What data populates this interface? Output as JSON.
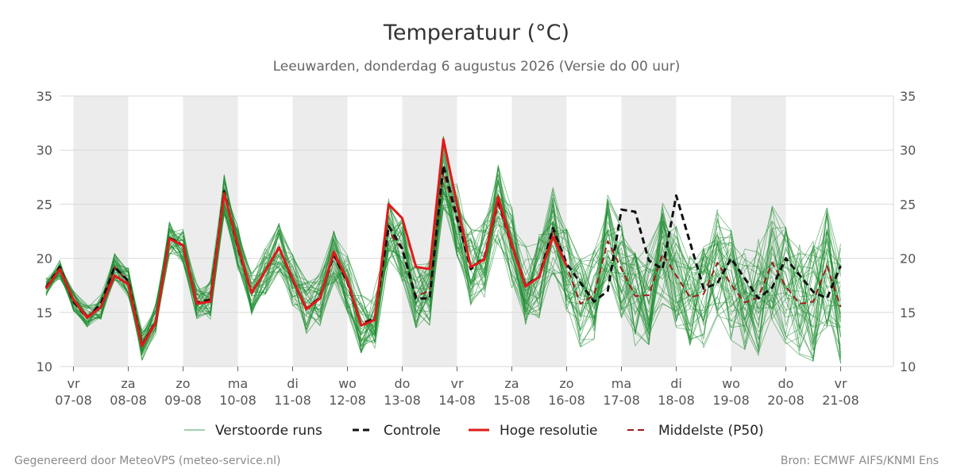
{
  "chart_data": {
    "type": "line",
    "title": "Temperatuur (°C)",
    "subtitle": "Leeuwarden, donderdag  6 augustus 2026 (Versie do 00 uur)",
    "ylim": [
      10,
      35
    ],
    "yticks": [
      10,
      15,
      20,
      25,
      30,
      35
    ],
    "xlim": [
      0,
      15
    ],
    "grid": true,
    "legend_placement": "bottom",
    "weekend_shading": [
      [
        1,
        2
      ],
      [
        3,
        4
      ],
      [
        5,
        6
      ],
      [
        7,
        8
      ],
      [
        9,
        10
      ],
      [
        11,
        12
      ],
      [
        13,
        14
      ]
    ],
    "x_ticks": [
      {
        "x": 1,
        "day": "vr",
        "date": "07-08"
      },
      {
        "x": 2,
        "day": "za",
        "date": "08-08"
      },
      {
        "x": 3,
        "day": "zo",
        "date": "09-08"
      },
      {
        "x": 4,
        "day": "ma",
        "date": "10-08"
      },
      {
        "x": 5,
        "day": "di",
        "date": "11-08"
      },
      {
        "x": 6,
        "day": "wo",
        "date": "12-08"
      },
      {
        "x": 7,
        "day": "do",
        "date": "13-08"
      },
      {
        "x": 8,
        "day": "vr",
        "date": "14-08"
      },
      {
        "x": 9,
        "day": "za",
        "date": "15-08"
      },
      {
        "x": 10,
        "day": "zo",
        "date": "16-08"
      },
      {
        "x": 11,
        "day": "ma",
        "date": "17-08"
      },
      {
        "x": 12,
        "day": "di",
        "date": "18-08"
      },
      {
        "x": 13,
        "day": "wo",
        "date": "19-08"
      },
      {
        "x": 14,
        "day": "do",
        "date": "20-08"
      },
      {
        "x": 15,
        "day": "vr",
        "date": "21-08"
      }
    ],
    "series": [
      {
        "name": "Controle",
        "color": "#111111",
        "style": "dashed",
        "width": 3,
        "x": [
          0.5,
          0.75,
          1,
          1.25,
          1.5,
          1.75,
          2,
          2.25,
          2.5,
          2.75,
          3,
          3.25,
          3.5,
          3.75,
          4,
          4.25,
          4.5,
          4.75,
          5,
          5.25,
          5.5,
          5.75,
          6,
          6.25,
          6.5,
          6.75,
          7,
          7.25,
          7.5,
          7.75,
          8,
          8.25,
          8.5,
          8.75,
          9,
          9.25,
          9.5,
          9.75,
          10,
          10.5,
          10.75,
          11,
          11.25,
          11.5,
          11.75,
          12,
          12.5,
          12.75,
          13,
          13.5,
          13.75,
          14,
          14.5,
          14.75,
          15
        ],
        "y": [
          17.3,
          19.2,
          16.0,
          14.5,
          15.8,
          19.2,
          17.9,
          12.0,
          14.0,
          21.9,
          21.2,
          15.8,
          16.2,
          26.2,
          21.0,
          16.8,
          18.8,
          21.0,
          18.0,
          15.3,
          16.4,
          20.3,
          17.8,
          13.8,
          14.5,
          23.0,
          20.9,
          16.3,
          16.3,
          28.6,
          23.8,
          19.0,
          20.1,
          25.5,
          21.3,
          17.5,
          18.3,
          22.8,
          19.5,
          16.0,
          17.0,
          24.5,
          24.3,
          19.8,
          19.0,
          25.8,
          17.2,
          17.7,
          20.0,
          16.3,
          17.3,
          20.0,
          16.9,
          16.3,
          19.3
        ]
      },
      {
        "name": "Hoge resolutie",
        "color": "#e11a1a",
        "style": "solid",
        "width": 3,
        "x": [
          0.5,
          0.75,
          1,
          1.25,
          1.5,
          1.75,
          2,
          2.25,
          2.5,
          2.75,
          3,
          3.25,
          3.5,
          3.75,
          4,
          4.25,
          4.5,
          4.75,
          5,
          5.25,
          5.5,
          5.75,
          6,
          6.25,
          6.5,
          6.75,
          7,
          7.25,
          7.5,
          7.75,
          8,
          8.25,
          8.5,
          8.75,
          9,
          9.25,
          9.5,
          9.75,
          10
        ],
        "y": [
          17.2,
          19.0,
          16.2,
          14.5,
          15.5,
          18.4,
          17.6,
          11.9,
          14.0,
          21.8,
          21.2,
          15.8,
          16.0,
          26.0,
          21.2,
          16.8,
          18.8,
          21.0,
          18.1,
          15.3,
          16.3,
          20.6,
          18.0,
          13.8,
          14.3,
          25.0,
          23.7,
          19.2,
          19.0,
          31.0,
          25.0,
          19.2,
          19.9,
          25.7,
          21.3,
          17.4,
          18.3,
          22.0,
          19.3
        ]
      },
      {
        "name": "Middelste (P50)",
        "color": "#9e1b1b",
        "style": "dashed",
        "width": 2,
        "x": [
          0.5,
          0.75,
          1,
          1.25,
          1.5,
          1.75,
          2,
          2.25,
          2.5,
          2.75,
          3,
          3.25,
          3.5,
          3.75,
          4,
          4.25,
          4.5,
          4.75,
          5,
          5.25,
          5.5,
          5.75,
          6,
          6.25,
          6.5,
          6.75,
          7,
          7.25,
          7.5,
          7.75,
          8,
          8.25,
          8.5,
          8.75,
          9,
          9.25,
          9.5,
          9.75,
          10,
          10.25,
          10.5,
          10.75,
          11,
          11.25,
          11.5,
          11.75,
          12,
          12.25,
          12.5,
          12.75,
          13,
          13.25,
          13.5,
          13.75,
          14,
          14.25,
          14.5,
          14.75,
          15
        ],
        "y": [
          17.3,
          19.0,
          16.1,
          14.7,
          15.5,
          19.2,
          17.8,
          12.0,
          14.3,
          21.9,
          21.1,
          16.0,
          16.2,
          26.0,
          21.0,
          16.8,
          18.8,
          21.0,
          18.0,
          15.5,
          16.3,
          20.3,
          17.8,
          14.0,
          14.5,
          22.5,
          20.8,
          16.5,
          17.0,
          28.0,
          23.5,
          19.2,
          20.0,
          25.0,
          21.0,
          17.5,
          18.3,
          22.6,
          19.3,
          15.8,
          16.6,
          21.6,
          19.0,
          16.5,
          16.6,
          20.4,
          18.4,
          16.4,
          16.7,
          19.6,
          17.6,
          15.9,
          16.4,
          19.6,
          17.4,
          15.8,
          16.0,
          19.3,
          15.5
        ]
      },
      {
        "name": "Verstoorde runs",
        "color": "#1e8c30",
        "style": "thin",
        "width": 0.9,
        "x": [
          0.5,
          0.75,
          1,
          1.25,
          1.5,
          1.75,
          2,
          2.25,
          2.5,
          2.75,
          3,
          3.25,
          3.5,
          3.75,
          4,
          4.25,
          4.5,
          4.75,
          5,
          5.25,
          5.5,
          5.75,
          6,
          6.25,
          6.5,
          6.75,
          7,
          7.25,
          7.5,
          7.75,
          8,
          8.25,
          8.5,
          8.75,
          9,
          9.25,
          9.5,
          9.75,
          10,
          10.25,
          10.5,
          10.75,
          11,
          11.25,
          11.5,
          11.75,
          12,
          12.25,
          12.5,
          12.75,
          13,
          13.25,
          13.5,
          13.75,
          14,
          14.25,
          14.5,
          14.75,
          15
        ],
        "y": [
          17.3,
          19.0,
          16.1,
          14.7,
          15.5,
          19.2,
          17.8,
          12.0,
          14.3,
          21.9,
          21.1,
          16.0,
          16.2,
          26.0,
          21.0,
          16.8,
          18.8,
          21.0,
          18.0,
          15.5,
          16.3,
          20.3,
          17.8,
          14.0,
          14.5,
          22.5,
          20.8,
          16.5,
          17.0,
          28.0,
          23.5,
          19.2,
          20.0,
          25.0,
          21.0,
          17.5,
          18.3,
          22.6,
          19.3,
          15.8,
          16.6,
          21.6,
          19.0,
          16.5,
          16.6,
          20.4,
          18.4,
          16.4,
          16.7,
          19.6,
          17.6,
          15.9,
          16.4,
          19.6,
          17.4,
          15.8,
          16.0,
          19.3,
          15.5
        ]
      }
    ]
  },
  "legend": [
    {
      "label": "Verstoorde runs",
      "color": "#1e8c30",
      "style": "thin"
    },
    {
      "label": "Controle",
      "color": "#111111",
      "style": "dashed"
    },
    {
      "label": "Hoge resolutie",
      "color": "#e11a1a",
      "style": "solid"
    },
    {
      "label": "Middelste (P50)",
      "color": "#9e1b1b",
      "style": "dashed"
    }
  ],
  "footer": {
    "left": "Gegenereerd door MeteoVPS (meteo-service.nl)",
    "right": "Bron: ECMWF AIFS/KNMI Ens"
  },
  "colors": {
    "weekend_band": "#ececec",
    "grid": "#d9d9d9",
    "ensemble": "#1e8c30"
  }
}
